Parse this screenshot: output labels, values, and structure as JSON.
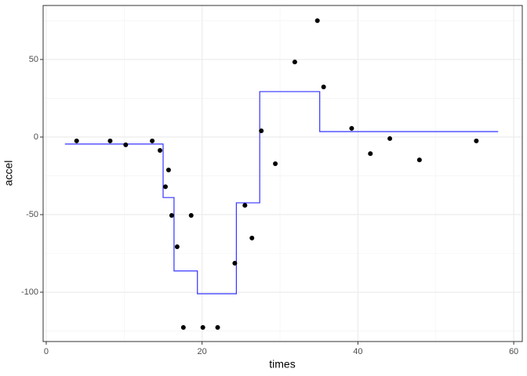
{
  "chart_data": {
    "type": "scatter",
    "x_label": "times",
    "y_label": "accel",
    "xlim": [
      -0.4,
      61.1
    ],
    "ylim": [
      -131.8,
      84.8
    ],
    "xticks": [
      0,
      20,
      40,
      60
    ],
    "yticks": [
      -100,
      -50,
      0,
      50
    ],
    "minor_xticks": [
      10,
      30,
      50
    ],
    "minor_yticks": [
      -125,
      -75,
      -25,
      25,
      75
    ],
    "grid": true,
    "points": {
      "color": "#000000",
      "x": [
        3.9,
        8.2,
        10.2,
        13.6,
        14.6,
        15.3,
        15.7,
        16.1,
        16.8,
        17.6,
        18.6,
        20.1,
        22.0,
        24.2,
        25.5,
        26.4,
        27.6,
        29.4,
        31.9,
        34.8,
        35.6,
        39.2,
        41.6,
        44.1,
        47.9,
        55.2
      ],
      "y": [
        -2.5,
        -2.5,
        -5,
        -2.5,
        -8.6,
        -32,
        -21.2,
        -50.5,
        -70.7,
        -122.7,
        -50.5,
        -122.7,
        -122.7,
        -81.3,
        -44,
        -65.1,
        4,
        -17.2,
        48.4,
        75,
        32.3,
        5.6,
        -10.7,
        -1,
        -14.7,
        -2.5
      ]
    },
    "step_line": {
      "color": "#3333ff",
      "x": [
        2.4,
        15,
        15,
        16.4,
        16.4,
        19.4,
        19.4,
        24.4,
        24.4,
        27.4,
        27.4,
        35.1,
        35.1,
        58
      ],
      "y": [
        -4.5,
        -4.5,
        -39,
        -39,
        -86.3,
        -86.3,
        -101,
        -101,
        -42.4,
        -42.4,
        29.3,
        29.3,
        3.5,
        3.5
      ]
    }
  }
}
